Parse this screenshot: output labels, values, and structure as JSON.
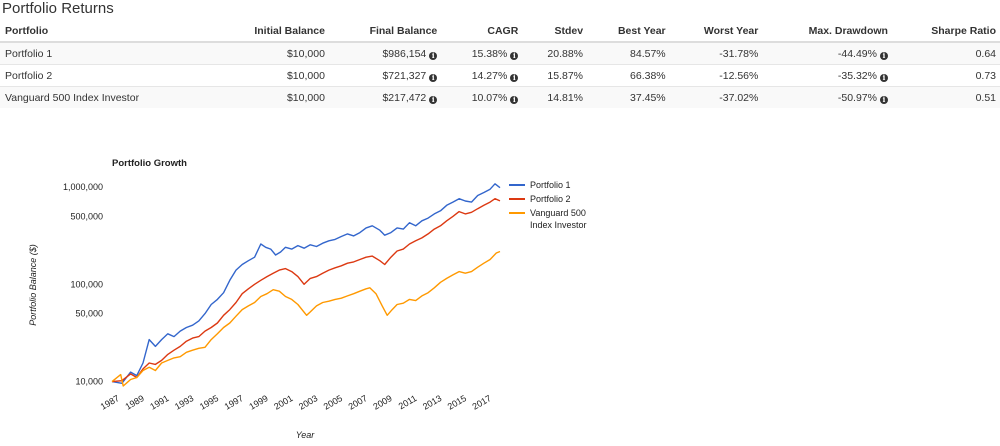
{
  "section_title": "Portfolio Returns",
  "table": {
    "headers": [
      "Portfolio",
      "Initial Balance",
      "Final Balance",
      "CAGR",
      "Stdev",
      "Best Year",
      "Worst Year",
      "Max. Drawdown",
      "Sharpe Ratio"
    ],
    "rows": [
      [
        "Portfolio 1",
        "$10,000",
        "$986,154",
        "15.38%",
        "20.88%",
        "84.57%",
        "-31.78%",
        "-44.49%",
        "0.64"
      ],
      [
        "Portfolio 2",
        "$10,000",
        "$721,327",
        "14.27%",
        "15.87%",
        "66.38%",
        "-12.56%",
        "-35.32%",
        "0.73"
      ],
      [
        "Vanguard 500 Index Investor",
        "$10,000",
        "$217,472",
        "10.07%",
        "14.81%",
        "37.45%",
        "-37.02%",
        "-50.97%",
        "0.51"
      ]
    ],
    "info_icon": "info-circle-icon"
  },
  "chart_data": {
    "type": "line",
    "title": "Portfolio Growth",
    "xlabel": "Year",
    "ylabel": "Portfolio Balance ($)",
    "y_scale": "log",
    "ylim": [
      9000,
      1300000
    ],
    "xlim": [
      1987.0,
      2018.3
    ],
    "x_ticks": [
      "1987",
      "1989",
      "1991",
      "1993",
      "1995",
      "1997",
      "1999",
      "2001",
      "2003",
      "2005",
      "2007",
      "2009",
      "2011",
      "2013",
      "2015",
      "2017"
    ],
    "y_ticks": [
      {
        "value": 10000,
        "label": "10,000"
      },
      {
        "value": 50000,
        "label": "50,000"
      },
      {
        "value": 100000,
        "label": "100,000"
      },
      {
        "value": 500000,
        "label": "500,000"
      },
      {
        "value": 1000000,
        "label": "1,000,000"
      }
    ],
    "grid": false,
    "legend": "right",
    "series": [
      {
        "name": "Portfolio 1",
        "color": "#3366cc",
        "points": [
          [
            1987.0,
            10000
          ],
          [
            1987.8,
            9600
          ],
          [
            1988.5,
            12500
          ],
          [
            1989.0,
            11500
          ],
          [
            1989.5,
            15500
          ],
          [
            1990.0,
            27000
          ],
          [
            1990.5,
            23000
          ],
          [
            1991.0,
            27000
          ],
          [
            1991.5,
            31000
          ],
          [
            1992.0,
            29000
          ],
          [
            1992.5,
            33000
          ],
          [
            1993.0,
            36000
          ],
          [
            1993.5,
            38000
          ],
          [
            1994.0,
            42000
          ],
          [
            1994.5,
            50000
          ],
          [
            1995.0,
            62000
          ],
          [
            1995.5,
            70000
          ],
          [
            1996.0,
            82000
          ],
          [
            1996.5,
            110000
          ],
          [
            1997.0,
            140000
          ],
          [
            1997.5,
            160000
          ],
          [
            1998.0,
            175000
          ],
          [
            1998.5,
            190000
          ],
          [
            1999.0,
            260000
          ],
          [
            1999.4,
            240000
          ],
          [
            1999.8,
            230000
          ],
          [
            2000.2,
            200000
          ],
          [
            2000.6,
            215000
          ],
          [
            2001.0,
            240000
          ],
          [
            2001.5,
            230000
          ],
          [
            2002.0,
            250000
          ],
          [
            2002.5,
            235000
          ],
          [
            2003.0,
            255000
          ],
          [
            2003.5,
            245000
          ],
          [
            2004.0,
            265000
          ],
          [
            2004.5,
            280000
          ],
          [
            2005.0,
            290000
          ],
          [
            2005.5,
            310000
          ],
          [
            2006.0,
            330000
          ],
          [
            2006.5,
            315000
          ],
          [
            2007.0,
            340000
          ],
          [
            2007.5,
            380000
          ],
          [
            2008.0,
            400000
          ],
          [
            2008.6,
            360000
          ],
          [
            2009.0,
            320000
          ],
          [
            2009.5,
            340000
          ],
          [
            2010.0,
            380000
          ],
          [
            2010.5,
            370000
          ],
          [
            2011.0,
            430000
          ],
          [
            2011.5,
            400000
          ],
          [
            2012.0,
            450000
          ],
          [
            2012.5,
            480000
          ],
          [
            2013.0,
            530000
          ],
          [
            2013.5,
            570000
          ],
          [
            2014.0,
            650000
          ],
          [
            2014.5,
            700000
          ],
          [
            2015.0,
            760000
          ],
          [
            2015.5,
            720000
          ],
          [
            2016.0,
            700000
          ],
          [
            2016.5,
            820000
          ],
          [
            2017.0,
            880000
          ],
          [
            2017.5,
            950000
          ],
          [
            2017.9,
            1080000
          ],
          [
            2018.3,
            986154
          ]
        ]
      },
      {
        "name": "Portfolio 2",
        "color": "#dc3912",
        "points": [
          [
            1987.0,
            10000
          ],
          [
            1987.8,
            10200
          ],
          [
            1988.5,
            12000
          ],
          [
            1989.0,
            11000
          ],
          [
            1989.5,
            13500
          ],
          [
            1990.0,
            15500
          ],
          [
            1990.5,
            15000
          ],
          [
            1991.0,
            16500
          ],
          [
            1991.5,
            19000
          ],
          [
            1992.0,
            21000
          ],
          [
            1992.5,
            23000
          ],
          [
            1993.0,
            26000
          ],
          [
            1993.5,
            28000
          ],
          [
            1994.0,
            29000
          ],
          [
            1994.5,
            33000
          ],
          [
            1995.0,
            36000
          ],
          [
            1995.5,
            40000
          ],
          [
            1996.0,
            48000
          ],
          [
            1996.5,
            55000
          ],
          [
            1997.0,
            65000
          ],
          [
            1997.5,
            80000
          ],
          [
            1998.0,
            90000
          ],
          [
            1998.5,
            100000
          ],
          [
            1999.0,
            110000
          ],
          [
            1999.5,
            120000
          ],
          [
            2000.0,
            130000
          ],
          [
            2000.5,
            140000
          ],
          [
            2001.0,
            145000
          ],
          [
            2001.5,
            135000
          ],
          [
            2002.0,
            120000
          ],
          [
            2002.5,
            100000
          ],
          [
            2003.0,
            115000
          ],
          [
            2003.5,
            120000
          ],
          [
            2004.0,
            130000
          ],
          [
            2004.5,
            140000
          ],
          [
            2005.0,
            148000
          ],
          [
            2005.5,
            155000
          ],
          [
            2006.0,
            165000
          ],
          [
            2006.5,
            170000
          ],
          [
            2007.0,
            180000
          ],
          [
            2007.5,
            190000
          ],
          [
            2008.0,
            195000
          ],
          [
            2008.6,
            175000
          ],
          [
            2009.0,
            160000
          ],
          [
            2009.5,
            190000
          ],
          [
            2010.0,
            220000
          ],
          [
            2010.5,
            230000
          ],
          [
            2011.0,
            260000
          ],
          [
            2011.5,
            280000
          ],
          [
            2012.0,
            300000
          ],
          [
            2012.5,
            330000
          ],
          [
            2013.0,
            370000
          ],
          [
            2013.5,
            400000
          ],
          [
            2014.0,
            450000
          ],
          [
            2014.5,
            500000
          ],
          [
            2015.0,
            560000
          ],
          [
            2015.5,
            530000
          ],
          [
            2016.0,
            550000
          ],
          [
            2016.5,
            600000
          ],
          [
            2017.0,
            650000
          ],
          [
            2017.5,
            700000
          ],
          [
            2017.9,
            760000
          ],
          [
            2018.3,
            721327
          ]
        ]
      },
      {
        "name": "Vanguard 500 Index Investor",
        "color": "#ff9900",
        "points": [
          [
            1987.0,
            10000
          ],
          [
            1987.7,
            11800
          ],
          [
            1987.9,
            9000
          ],
          [
            1988.5,
            10500
          ],
          [
            1989.0,
            11000
          ],
          [
            1989.5,
            13000
          ],
          [
            1990.0,
            14000
          ],
          [
            1990.5,
            13000
          ],
          [
            1991.0,
            15500
          ],
          [
            1991.5,
            16500
          ],
          [
            1992.0,
            17500
          ],
          [
            1992.5,
            18000
          ],
          [
            1993.0,
            20000
          ],
          [
            1993.5,
            21000
          ],
          [
            1994.0,
            22000
          ],
          [
            1994.5,
            22500
          ],
          [
            1995.0,
            27000
          ],
          [
            1995.5,
            31000
          ],
          [
            1996.0,
            36000
          ],
          [
            1996.5,
            40000
          ],
          [
            1997.0,
            47000
          ],
          [
            1997.5,
            55000
          ],
          [
            1998.0,
            60000
          ],
          [
            1998.5,
            65000
          ],
          [
            1999.0,
            75000
          ],
          [
            1999.5,
            80000
          ],
          [
            2000.0,
            88000
          ],
          [
            2000.5,
            85000
          ],
          [
            2001.0,
            75000
          ],
          [
            2001.5,
            70000
          ],
          [
            2002.0,
            62000
          ],
          [
            2002.7,
            48000
          ],
          [
            2003.0,
            52000
          ],
          [
            2003.5,
            60000
          ],
          [
            2004.0,
            65000
          ],
          [
            2004.5,
            67000
          ],
          [
            2005.0,
            70000
          ],
          [
            2005.5,
            72000
          ],
          [
            2006.0,
            76000
          ],
          [
            2006.5,
            80000
          ],
          [
            2007.0,
            85000
          ],
          [
            2007.5,
            90000
          ],
          [
            2007.8,
            92000
          ],
          [
            2008.3,
            80000
          ],
          [
            2008.8,
            60000
          ],
          [
            2009.2,
            48000
          ],
          [
            2009.6,
            55000
          ],
          [
            2010.0,
            62000
          ],
          [
            2010.5,
            64000
          ],
          [
            2011.0,
            70000
          ],
          [
            2011.5,
            68000
          ],
          [
            2012.0,
            76000
          ],
          [
            2012.5,
            82000
          ],
          [
            2013.0,
            92000
          ],
          [
            2013.5,
            105000
          ],
          [
            2014.0,
            115000
          ],
          [
            2014.5,
            125000
          ],
          [
            2015.0,
            135000
          ],
          [
            2015.5,
            130000
          ],
          [
            2016.0,
            135000
          ],
          [
            2016.5,
            150000
          ],
          [
            2017.0,
            165000
          ],
          [
            2017.5,
            180000
          ],
          [
            2018.0,
            210000
          ],
          [
            2018.3,
            217472
          ]
        ]
      }
    ]
  }
}
